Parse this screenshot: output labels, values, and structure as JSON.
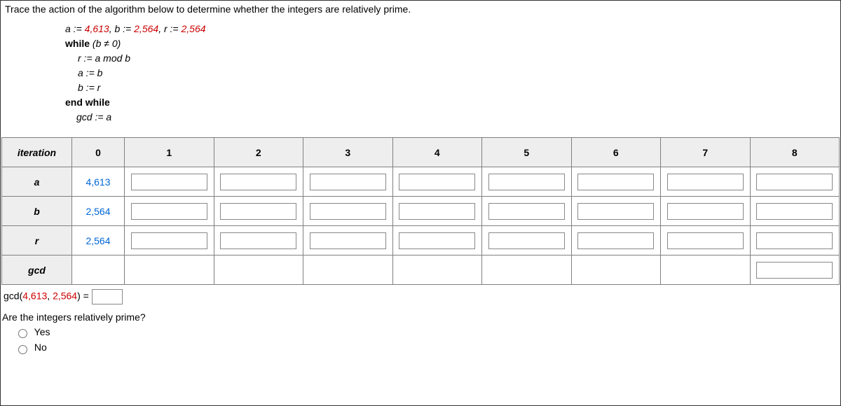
{
  "question": "Trace the action of the algorithm below to determine whether the integers are relatively prime.",
  "algorithm": {
    "init_a_label": "a",
    "init_a_val": "4,613",
    "init_b_label": "b",
    "init_b_val": "2,564",
    "init_r_label": "r",
    "init_r_val": "2,564",
    "while_kw": "while",
    "while_cond": "(b ≠ 0)",
    "line_r": "r := a mod b",
    "line_a": "a := b",
    "line_b": "b := r",
    "endwhile": "end while",
    "gcd_line": "gcd := a"
  },
  "table": {
    "headers": [
      "iteration",
      "0",
      "1",
      "2",
      "3",
      "4",
      "5",
      "6",
      "7",
      "8"
    ],
    "rows": [
      {
        "label": "a",
        "initial": "4,613",
        "inputs": 8
      },
      {
        "label": "b",
        "initial": "2,564",
        "inputs": 8
      },
      {
        "label": "r",
        "initial": "2,564",
        "inputs": 8
      },
      {
        "label": "gcd",
        "initial": "",
        "inputs": 0,
        "tailInput": true
      }
    ]
  },
  "gcd_result": {
    "prefix": "gcd(",
    "val_a": "4,613",
    "sep": ", ",
    "val_b": "2,564",
    "suffix": ") = "
  },
  "prime_question": "Are the integers relatively prime?",
  "options": {
    "yes": "Yes",
    "no": "No"
  },
  "styling": {
    "red": "#cc0000",
    "blue": "#0066d6",
    "header_bg": "#eeeeee",
    "border": "#808080"
  }
}
